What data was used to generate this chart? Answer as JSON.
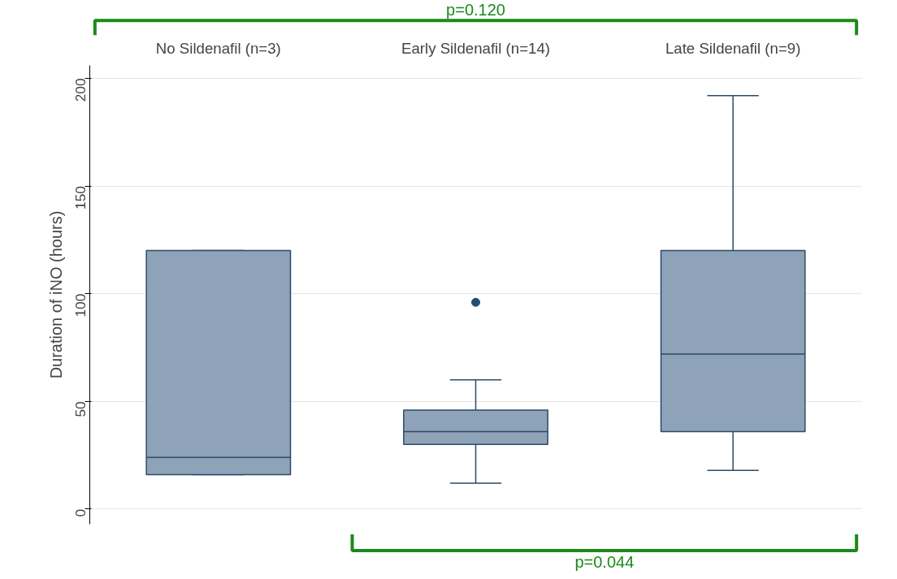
{
  "chart_data": {
    "type": "box",
    "categories": [
      "No Sildenafil (n=3)",
      "Early Sildenafil (n=14)",
      "Late Sildenafil (n=9)"
    ],
    "ylabel": "Duration of iNO (hours)",
    "ylim": [
      -7,
      206
    ],
    "yticks": [
      0,
      50,
      100,
      150,
      200
    ],
    "grid": "y",
    "series": [
      {
        "color": "#8ea3b8",
        "boxes": [
          {
            "low": 16,
            "q1": 16,
            "median": 24,
            "q3": 120,
            "high": 120
          },
          {
            "low": 12,
            "q1": 30,
            "median": 36,
            "q3": 46,
            "high": 60,
            "outliers": [
              96
            ]
          },
          {
            "low": 18,
            "q1": 36,
            "median": 72,
            "q3": 120,
            "high": 192
          }
        ]
      }
    ],
    "annotations": [
      "p=0.120",
      "p=0.044"
    ]
  }
}
